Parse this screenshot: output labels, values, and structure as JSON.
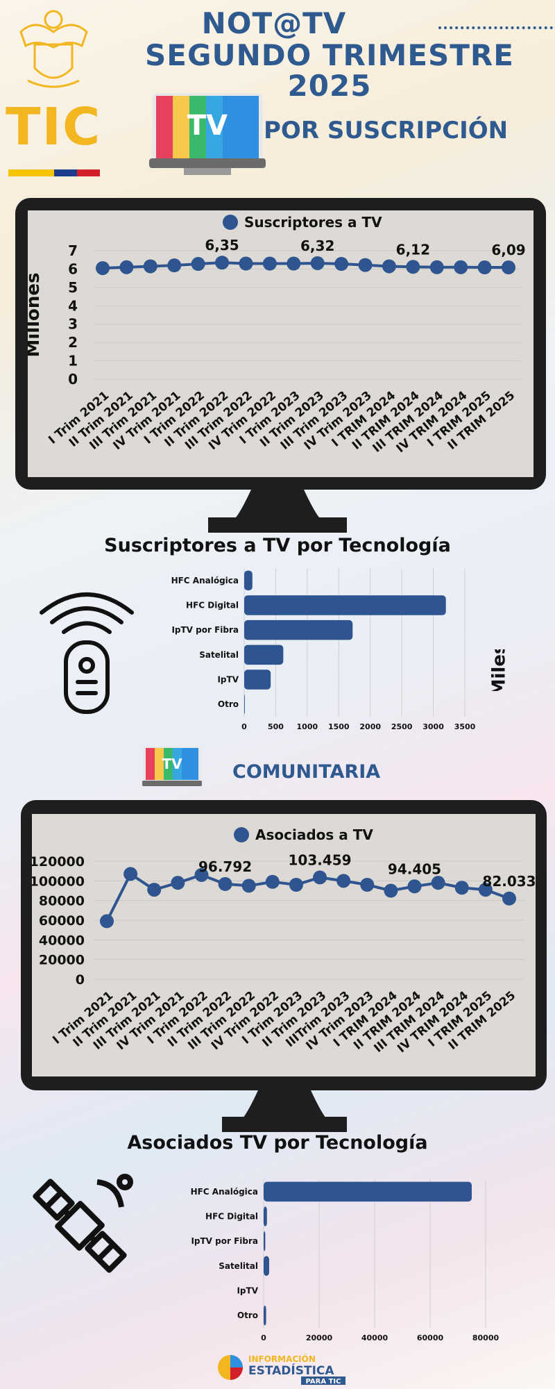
{
  "header": {
    "title_line1": "NOT@TV",
    "title_line2": "SEGUNDO TRIMESTRE 2025",
    "logo_text": "TIC",
    "tv_logo_text": "TV",
    "subtitle_subscription": "POR SUSCRIPCIÓN",
    "subtitle_community": "COMUNITARIA"
  },
  "colors": {
    "primary": "#2f5a90",
    "series": "#2e5590",
    "flag_yellow": "#f4c400",
    "flag_blue": "#1e3c8c",
    "flag_red": "#d21f2a"
  },
  "footer": {
    "line1": "INFORMACIÓN",
    "line2": "ESTADÍSTICA",
    "line3": "PARA TIC"
  },
  "chart_data": [
    {
      "type": "line",
      "legend": "Suscriptores a TV",
      "ylabel": "Millones",
      "ylim": [
        0,
        7
      ],
      "yticks": [
        0,
        1,
        2,
        3,
        4,
        5,
        6,
        7
      ],
      "categories": [
        "I Trim 2021",
        "II Trim 2021",
        "III Trim 2021",
        "IV Trim 2021",
        "I Trim 2022",
        "II Trim 2022",
        "III Trim 2022",
        "IV Trim 2022",
        "I Trim 2023",
        "II Trim 2023",
        "III Trim 2023",
        "IV Trim 2023",
        "I TRIM 2024",
        "II TRIM 2024",
        "III TRIM 2024",
        "IV TRIM 2024",
        "I TRIM 2025",
        "II TRIM 2025"
      ],
      "values": [
        6.05,
        6.1,
        6.15,
        6.2,
        6.28,
        6.35,
        6.3,
        6.3,
        6.3,
        6.32,
        6.28,
        6.22,
        6.15,
        6.12,
        6.1,
        6.1,
        6.09,
        6.09
      ],
      "data_labels": [
        {
          "index": 5,
          "text": "6,35"
        },
        {
          "index": 9,
          "text": "6,32"
        },
        {
          "index": 13,
          "text": "6,12"
        },
        {
          "index": 17,
          "text": "6,09"
        }
      ]
    },
    {
      "type": "bar",
      "orientation": "horizontal",
      "title": "Suscriptores a TV por Tecnología",
      "ylabel": "Miles",
      "xlim": [
        0,
        3500
      ],
      "xticks": [
        0,
        500,
        1000,
        1500,
        2000,
        2500,
        3000,
        3500
      ],
      "categories": [
        "HFC Analógica",
        "HFC Digital",
        "IpTV por Fibra",
        "Satelital",
        "IpTV",
        "Otro"
      ],
      "values": [
        130,
        3200,
        1720,
        620,
        420,
        10
      ]
    },
    {
      "type": "line",
      "legend": "Asociados a TV",
      "ylim": [
        0,
        120000
      ],
      "yticks": [
        0,
        20000,
        40000,
        60000,
        80000,
        100000,
        120000
      ],
      "categories": [
        "I Trim 2021",
        "II Trim 2021",
        "III Trim 2021",
        "IV Trim 2021",
        "I Trim 2022",
        "II Trim 2022",
        "III Trim 2022",
        "IV Trim 2022",
        "I Trim 2023",
        "II Trim 2023",
        "IIITrim 2023",
        "IV Trim 2023",
        "I TRIM 2024",
        "II TRIM 2024",
        "III TRIM 2024",
        "IV TRIM 2024",
        "I TRIM 2025",
        "II TRIM 2025"
      ],
      "values": [
        59000,
        107000,
        91000,
        98000,
        106000,
        96792,
        95000,
        99000,
        96000,
        103459,
        100000,
        96000,
        90000,
        94405,
        98000,
        93000,
        91000,
        82033
      ],
      "data_labels": [
        {
          "index": 5,
          "text": "96.792"
        },
        {
          "index": 9,
          "text": "103.459"
        },
        {
          "index": 13,
          "text": "94.405"
        },
        {
          "index": 17,
          "text": "82.033"
        }
      ]
    },
    {
      "type": "bar",
      "orientation": "horizontal",
      "title": "Asociados TV por Tecnología",
      "xlim": [
        0,
        80000
      ],
      "xticks": [
        0,
        20000,
        40000,
        60000,
        80000
      ],
      "categories": [
        "HFC Analógica",
        "HFC Digital",
        "IpTV por Fibra",
        "Satelital",
        "IpTV",
        "Otro"
      ],
      "values": [
        75000,
        1200,
        600,
        2000,
        0,
        900
      ]
    }
  ]
}
